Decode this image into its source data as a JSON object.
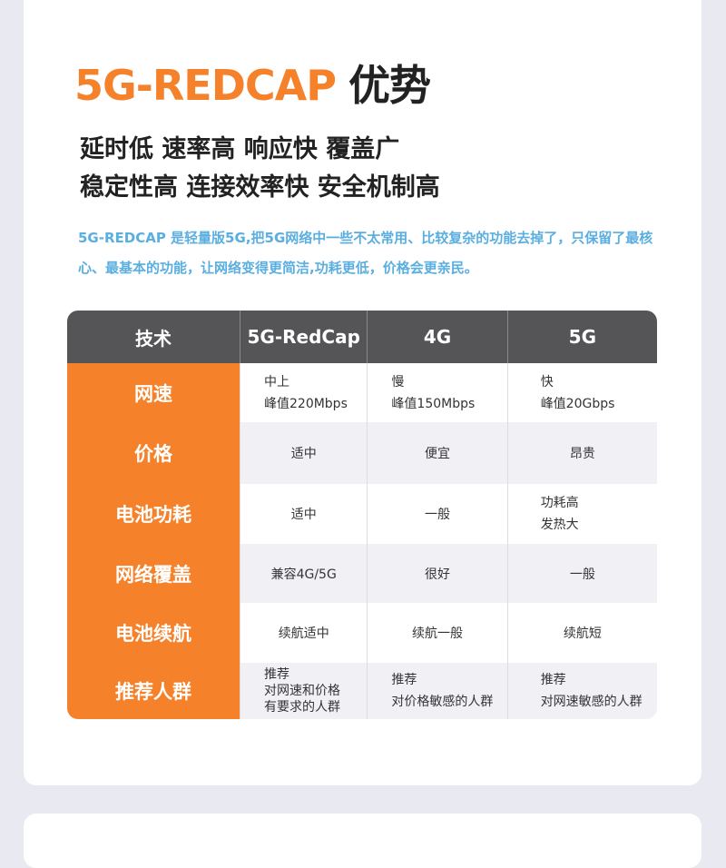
{
  "title": {
    "brand": "5G-REDCAP",
    "suffix": "优势"
  },
  "subtitle": [
    "延时低 速率高 响应快 覆盖广",
    "稳定性高 连接效率快 安全机制高"
  ],
  "description": "5G-REDCAP 是轻量版5G,把5G网络中一些不太常用、比较复杂的功能去掉了，只保留了最核心、最基本的功能，让网络变得更简洁,功耗更低，价格会更亲民。",
  "table": {
    "headers": [
      "技术",
      "5G-RedCap",
      "4G",
      "5G"
    ],
    "rows": [
      {
        "label": "网速",
        "cells": [
          "中上\n峰值220Mbps",
          "慢\n峰值150Mbps",
          "快\n峰值20Gbps"
        ]
      },
      {
        "label": "价格",
        "cells": [
          "适中",
          "便宜",
          "昂贵"
        ]
      },
      {
        "label": "电池功耗",
        "cells": [
          "适中",
          "一般",
          "功耗高\n发热大"
        ]
      },
      {
        "label": "网络覆盖",
        "cells": [
          "兼容4G/5G",
          "很好",
          "一般"
        ]
      },
      {
        "label": "电池续航",
        "cells": [
          "续航适中",
          "续航一般",
          "续航短"
        ]
      },
      {
        "label": "推荐人群",
        "cells": [
          "推荐\n对网速和价格\n有要求的人群",
          "推荐\n对价格敏感的人群",
          "推荐\n对网速敏感的人群"
        ]
      }
    ]
  },
  "colors": {
    "accent": "#f5822a",
    "header": "#555558",
    "description": "#5aaee0"
  }
}
